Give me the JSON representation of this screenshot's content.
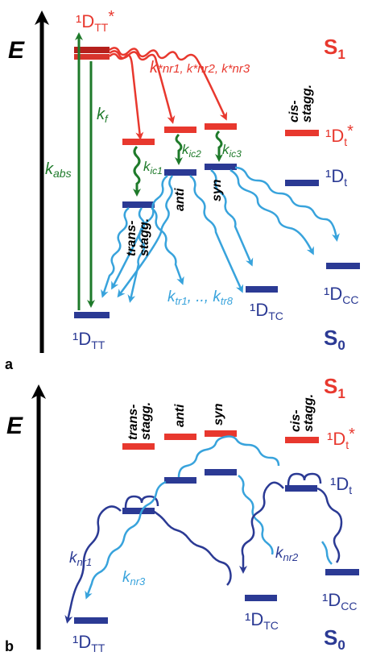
{
  "colors": {
    "singlet": "#e8382e",
    "ground": "#2b3a94",
    "excited_level": "#e8382e",
    "ic_arrow": "#1e7a2a",
    "abs_arrow": "#1e7a2a",
    "tr_arrow": "#38a3dc",
    "nr_arrow_dark": "#2b3a94",
    "nr_arrow_light": "#38a3dc",
    "axis": "#000000"
  },
  "panel_a": {
    "panel_label": "a",
    "axis_label": "E",
    "s1_label": "S",
    "s1_sub": "1",
    "s0_label": "S",
    "s0_sub": "0",
    "dtt_star": "¹D",
    "dtt_star_sub": "TT",
    "dtt_star_sup": "*",
    "dt_star": "¹D",
    "dt_star_sub": "t",
    "dt_star_sup": "*",
    "dt": "¹D",
    "dt_sub": "t",
    "dtt": "¹D",
    "dtt_sub": "TT",
    "dtc": "¹D",
    "dtc_sub": "TC",
    "dcc": "¹D",
    "dcc_sub": "CC",
    "k_abs": "k",
    "k_abs_sub": "abs",
    "k_f": "k",
    "k_f_sub": "f",
    "k_nr": "k",
    "k_nr_text": "*nr1, k*nr2, k*nr3",
    "k_ic1": "k",
    "k_ic1_sub": "ic1",
    "k_ic2": "k",
    "k_ic2_sub": "ic2",
    "k_ic3": "k",
    "k_ic3_sub": "ic3",
    "k_tr": "k",
    "k_tr_sub1": "tr1",
    "k_tr_mid": ", .., k",
    "k_tr_sub8": "tr8",
    "conf_trans": "trans-",
    "conf_trans2": "stagg.",
    "conf_anti": "anti",
    "conf_syn": "syn",
    "conf_cis": "cis-",
    "conf_cis2": "stagg."
  },
  "panel_b": {
    "panel_label": "b",
    "axis_label": "E",
    "s1_label": "S",
    "s1_sub": "1",
    "s0_label": "S",
    "s0_sub": "0",
    "dt_star": "¹D",
    "dt_star_sub": "t",
    "dt_star_sup": "*",
    "dt": "¹D",
    "dt_sub": "t",
    "dtt": "¹D",
    "dtt_sub": "TT",
    "dtc": "¹D",
    "dtc_sub": "TC",
    "dcc": "¹D",
    "dcc_sub": "CC",
    "k_nr1": "k",
    "k_nr1_sub": "nr1",
    "k_nr2": "k",
    "k_nr2_sub": "nr2",
    "k_nr3": "k",
    "k_nr3_sub": "nr3",
    "conf_trans": "trans-",
    "conf_trans2": "stagg.",
    "conf_anti": "anti",
    "conf_syn": "syn",
    "conf_cis": "cis-",
    "conf_cis2": "stagg."
  }
}
